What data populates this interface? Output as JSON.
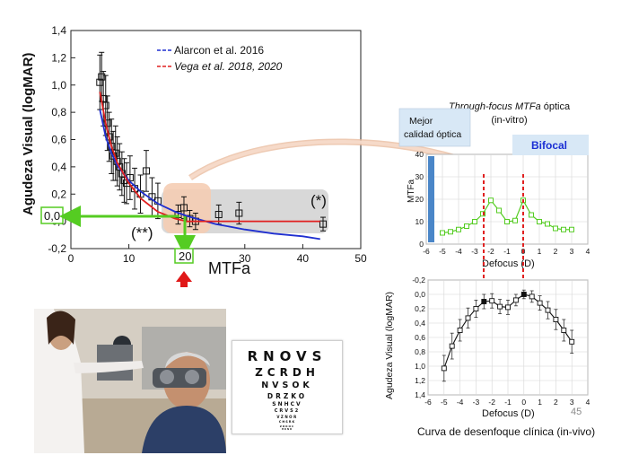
{
  "colors": {
    "alarcon_line": "#1f2fd0",
    "vega_line": "#e02020",
    "green_marker": "#55cc22",
    "peak_marker": "#e02020",
    "arrow": "#e01818",
    "best_bar": "#4a86c8",
    "bifocal_bg": "#d8e8f6",
    "bifocal_text": "#1b2fd4",
    "shade_grey": "#d8d8d8",
    "shade_peach": "#f5cdb4",
    "swoosh": "#e8b89a"
  },
  "main_chart": {
    "xlabel": "MTFa",
    "ylabel": "Agudeza Visual (logMAR)",
    "xlim": [
      0,
      50
    ],
    "ylim": [
      -0.2,
      1.4
    ],
    "xticks": [
      "0",
      "10",
      "20",
      "30",
      "40",
      "50"
    ],
    "yticks": [
      "-0,2",
      "0,0",
      "0,2",
      "0,4",
      "0,6",
      "0,8",
      "1,0",
      "1,2",
      "1,4"
    ],
    "highlight_y_label": "0,0",
    "highlight_x_label": "20",
    "annotations": [
      "(**)",
      "(*)"
    ]
  },
  "chart_data": [
    {
      "type": "scatter",
      "title": "",
      "xlabel": "MTFa",
      "ylabel": "Agudeza Visual (logMAR)",
      "xlim": [
        0,
        50
      ],
      "ylim": [
        -0.2,
        1.4
      ],
      "series": [
        {
          "name": "Alarcon et al. 2016",
          "kind": "fit",
          "x": [
            5,
            6,
            7,
            8,
            10,
            12,
            15,
            18,
            20,
            25,
            30,
            35,
            40,
            43
          ],
          "y": [
            0.82,
            0.62,
            0.5,
            0.41,
            0.3,
            0.22,
            0.13,
            0.07,
            0.04,
            -0.02,
            -0.06,
            -0.09,
            -0.11,
            -0.13
          ]
        },
        {
          "name": "Vega et al. 2018, 2020",
          "kind": "fit",
          "x": [
            5,
            6,
            7,
            8,
            10,
            12,
            15,
            18,
            20,
            25,
            30,
            35,
            40,
            43
          ],
          "y": [
            0.95,
            0.72,
            0.55,
            0.43,
            0.28,
            0.17,
            0.07,
            0.02,
            0.0,
            0.0,
            0.0,
            0.0,
            0.0,
            0.0
          ]
        },
        {
          "name": "data",
          "kind": "points",
          "x": [
            5.0,
            5.3,
            5.6,
            6.0,
            6.3,
            6.6,
            7.0,
            7.3,
            7.7,
            8.0,
            8.4,
            8.8,
            9.2,
            9.6,
            10.2,
            11.0,
            12.0,
            13.0,
            14.0,
            15.0,
            18.5,
            19.5,
            20.5,
            21.5,
            25.5,
            29.0,
            43.5
          ],
          "y": [
            1.02,
            1.06,
            0.9,
            0.85,
            0.72,
            0.62,
            0.55,
            0.48,
            0.5,
            0.44,
            0.4,
            0.35,
            0.3,
            0.28,
            0.32,
            0.24,
            0.2,
            0.37,
            0.18,
            0.15,
            0.05,
            0.1,
            0.02,
            0.0,
            0.05,
            0.06,
            -0.02
          ],
          "err": [
            0.2,
            0.18,
            0.2,
            0.22,
            0.2,
            0.18,
            0.2,
            0.18,
            0.2,
            0.18,
            0.17,
            0.16,
            0.16,
            0.15,
            0.16,
            0.15,
            0.14,
            0.15,
            0.14,
            0.13,
            0.07,
            0.08,
            0.06,
            0.06,
            0.07,
            0.08,
            0.05
          ]
        }
      ]
    },
    {
      "type": "line",
      "title": "Through-focus MTFa óptica (in-vitro)",
      "xlabel": "Defocus (D)",
      "ylabel": "MTFa",
      "xlim": [
        -6,
        4
      ],
      "ylim": [
        0,
        40
      ],
      "xticks": [
        "-6",
        "-5",
        "-4",
        "-3",
        "-2",
        "-1",
        "0",
        "1",
        "2",
        "3",
        "4"
      ],
      "yticks": [
        "0",
        "10",
        "20",
        "30",
        "40"
      ],
      "x": [
        -5,
        -4.5,
        -4,
        -3.5,
        -3,
        -2.5,
        -2,
        -1.5,
        -1,
        -0.5,
        0,
        0.5,
        1,
        1.5,
        2,
        2.5,
        3
      ],
      "values": [
        5,
        5.5,
        6.5,
        8,
        10,
        13.5,
        19.5,
        15,
        10,
        10.5,
        19.5,
        13,
        10,
        9,
        7,
        6.5,
        6.5
      ]
    },
    {
      "type": "line",
      "title": "Curva de desenfoque clínica (in-vivo)",
      "xlabel": "Defocus (D)",
      "ylabel": "Agudeza Visual (logMAR)",
      "xlim": [
        -6,
        4
      ],
      "ylim": [
        -0.2,
        1.4
      ],
      "xticks": [
        "-6",
        "-5",
        "-4",
        "-3",
        "-2",
        "-1",
        "0",
        "1",
        "2",
        "3",
        "4"
      ],
      "yticks": [
        "-0,2",
        "0,0",
        "0,2",
        "0,4",
        "0,6",
        "0,8",
        "1,0",
        "1,2",
        "1,4"
      ],
      "x": [
        -5,
        -4.5,
        -4,
        -3.5,
        -3,
        -2.5,
        -2,
        -1.5,
        -1,
        -0.5,
        0,
        0.5,
        1,
        1.5,
        2,
        2.5,
        3
      ],
      "values": [
        1.03,
        0.72,
        0.5,
        0.33,
        0.2,
        0.1,
        0.09,
        0.17,
        0.18,
        0.08,
        0.0,
        0.03,
        0.12,
        0.22,
        0.35,
        0.5,
        0.66
      ],
      "err": [
        0.18,
        0.18,
        0.15,
        0.14,
        0.12,
        0.1,
        0.1,
        0.1,
        0.1,
        0.08,
        0.06,
        0.08,
        0.1,
        0.12,
        0.14,
        0.15,
        0.16
      ]
    }
  ],
  "top_right": {
    "title_italic": "Through-focus MTFa",
    "title_rest": " óptica",
    "subtitle": "(in-vitro)",
    "mejor": "Mejor\ncalidad óptica",
    "bifocal": "Bifocal"
  },
  "caption": "Curva de desenfoque clínica (in-vivo)",
  "slide_number": "45",
  "eye_chart": {
    "rows": [
      "RNOVS",
      "ZCRDH",
      "NVSOK",
      "DRZKO",
      "SNHCV",
      "CRVS2",
      "VZNOR",
      "CHSRK",
      "ZRKOC",
      "HKNR"
    ]
  }
}
